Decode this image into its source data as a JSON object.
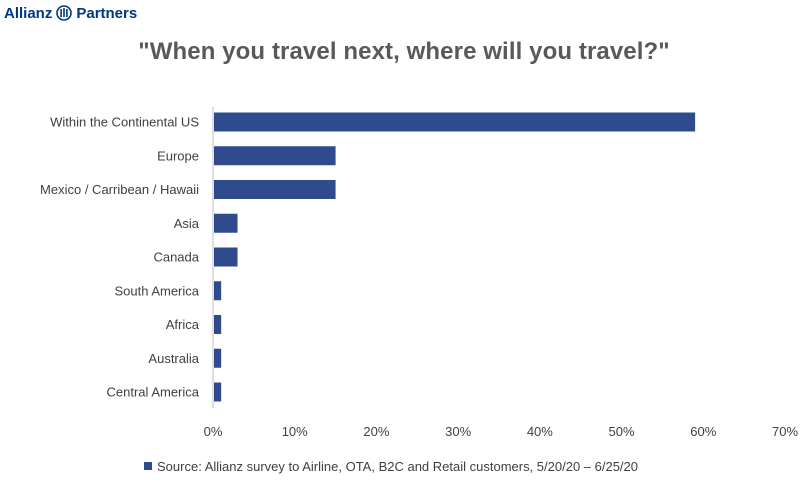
{
  "logo": {
    "left": "Allianz",
    "right": "Partners"
  },
  "colors": {
    "bar": "#2f4b8d",
    "brand": "#003781",
    "axis": "#bfbfbf"
  },
  "chart_data": {
    "type": "bar",
    "orientation": "horizontal",
    "title": "\"When you travel next, where will you travel?\"",
    "categories": [
      "Within the Continental US",
      "Europe",
      "Mexico / Carribean / Hawaii",
      "Asia",
      "Canada",
      "South America",
      "Africa",
      "Australia",
      "Central America"
    ],
    "series": [
      {
        "name": "Source: Allianz survey to Airline, OTA, B2C and Retail customers, 5/20/20 – 6/25/20",
        "values": [
          59,
          15,
          15,
          3,
          3,
          1,
          1,
          1,
          1
        ]
      }
    ],
    "xticks": [
      "0%",
      "10%",
      "20%",
      "30%",
      "40%",
      "50%",
      "60%",
      "70%"
    ],
    "xlim": [
      0,
      70
    ],
    "grid": false,
    "legend": "bottom"
  }
}
